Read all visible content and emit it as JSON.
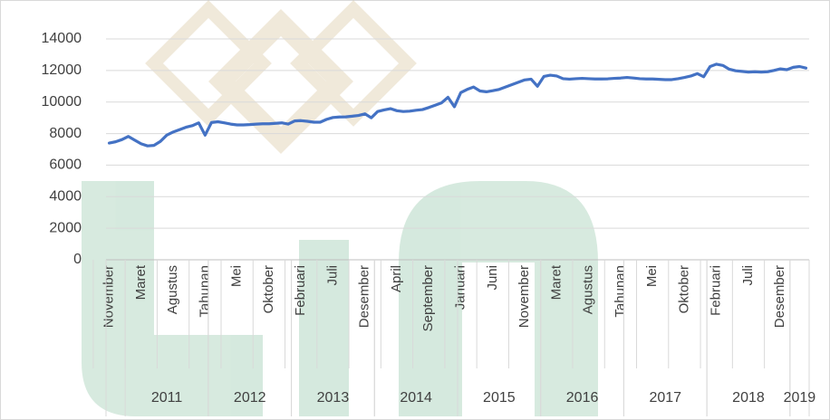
{
  "chart_data": {
    "type": "line",
    "color": "#4472c4",
    "grid": true,
    "categories": [
      "November",
      null,
      null,
      null,
      null,
      "Maret",
      null,
      null,
      null,
      null,
      "Agustus",
      null,
      null,
      null,
      null,
      "Tahunan",
      null,
      null,
      null,
      null,
      "Mei",
      null,
      null,
      null,
      null,
      "Oktober",
      null,
      null,
      null,
      null,
      "Februari",
      null,
      null,
      null,
      null,
      "Juli",
      null,
      null,
      null,
      null,
      "Desember",
      null,
      null,
      null,
      null,
      "April",
      null,
      null,
      null,
      null,
      "September",
      null,
      null,
      null,
      null,
      "Januari",
      null,
      null,
      null,
      null,
      "Juni",
      null,
      null,
      null,
      null,
      "November",
      null,
      null,
      null,
      null,
      "Maret",
      null,
      null,
      null,
      null,
      "Agustus",
      null,
      null,
      null,
      null,
      "Tahunan",
      null,
      null,
      null,
      null,
      "Mei",
      null,
      null,
      null,
      null,
      "Oktober",
      null,
      null,
      null,
      null,
      "Februari",
      null,
      null,
      null,
      null,
      "Juli",
      null,
      null,
      null,
      null,
      "Desember",
      null,
      null,
      null,
      null
    ],
    "groups": [
      {
        "label": "2011",
        "first": 3,
        "last": 15
      },
      {
        "label": "2012",
        "first": 16,
        "last": 28
      },
      {
        "label": "2013",
        "first": 29,
        "last": 41
      },
      {
        "label": "2014",
        "first": 42,
        "last": 54
      },
      {
        "label": "2015",
        "first": 55,
        "last": 67
      },
      {
        "label": "2016",
        "first": 68,
        "last": 80
      },
      {
        "label": "2017",
        "first": 81,
        "last": 93
      },
      {
        "label": "2018",
        "first": 94,
        "last": 106
      },
      {
        "label": "2019",
        "first": 107,
        "last": 109
      }
    ],
    "values": [
      7400,
      7480,
      7620,
      7820,
      7580,
      7350,
      7220,
      7250,
      7500,
      7900,
      8100,
      8250,
      8400,
      8500,
      8680,
      7900,
      8700,
      8750,
      8680,
      8600,
      8550,
      8550,
      8570,
      8600,
      8620,
      8620,
      8650,
      8680,
      8600,
      8800,
      8820,
      8780,
      8720,
      8720,
      8900,
      9020,
      9050,
      9060,
      9100,
      9150,
      9250,
      9000,
      9400,
      9500,
      9580,
      9450,
      9400,
      9420,
      9480,
      9520,
      9650,
      9800,
      9950,
      10300,
      9700,
      10600,
      10800,
      10950,
      10700,
      10650,
      10720,
      10800,
      10950,
      11100,
      11250,
      11400,
      11450,
      11000,
      11620,
      11700,
      11650,
      11480,
      11450,
      11480,
      11500,
      11480,
      11460,
      11460,
      11470,
      11500,
      11520,
      11560,
      11520,
      11480,
      11460,
      11460,
      11440,
      11420,
      11420,
      11480,
      11560,
      11650,
      11800,
      11600,
      12250,
      12400,
      12320,
      12080,
      11980,
      11940,
      11900,
      11920,
      11900,
      11920,
      12000,
      12100,
      12050,
      12200,
      12250,
      12150
    ],
    "ylim": [
      0,
      14000
    ],
    "yticks": [
      0,
      2000,
      4000,
      6000,
      8000,
      10000,
      12000,
      14000
    ]
  }
}
